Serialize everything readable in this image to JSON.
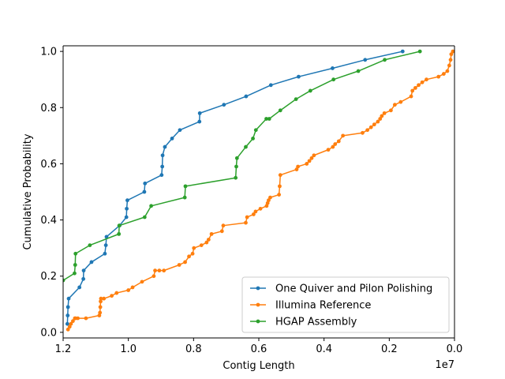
{
  "chart_data": {
    "type": "line",
    "title": "",
    "xlabel": "Contig Length",
    "ylabel": "Cumulative Probability",
    "x_offset_label": "1e7",
    "x_scale_factor": 10000000,
    "xlim": [
      12000000,
      0
    ],
    "ylim": [
      -0.02,
      1.02
    ],
    "x_inverted": true,
    "grid": false,
    "legend_position": "lower-right",
    "x_ticks": [
      {
        "value": 12000000,
        "label": "1.2"
      },
      {
        "value": 10000000,
        "label": "1.0"
      },
      {
        "value": 8000000,
        "label": "0.8"
      },
      {
        "value": 6000000,
        "label": "0.6"
      },
      {
        "value": 4000000,
        "label": "0.4"
      },
      {
        "value": 2000000,
        "label": "0.2"
      },
      {
        "value": 0,
        "label": "0.0"
      }
    ],
    "y_ticks": [
      {
        "value": 0.0,
        "label": "0.0"
      },
      {
        "value": 0.2,
        "label": "0.2"
      },
      {
        "value": 0.4,
        "label": "0.4"
      },
      {
        "value": 0.6,
        "label": "0.6"
      },
      {
        "value": 0.8,
        "label": "0.8"
      },
      {
        "value": 1.0,
        "label": "1.0"
      }
    ],
    "series": [
      {
        "name": "One Quiver and Pilon Polishing",
        "color": "#1f77b4",
        "x": [
          11870000,
          11860000,
          11850000,
          11830000,
          11500000,
          11380000,
          11370000,
          11130000,
          10720000,
          10690000,
          10670000,
          10270000,
          10060000,
          10050000,
          10030000,
          9510000,
          9490000,
          8980000,
          8960000,
          8950000,
          8880000,
          8660000,
          8420000,
          7820000,
          7810000,
          7070000,
          6390000,
          5630000,
          4780000,
          3740000,
          2740000,
          1590000
        ],
        "y": [
          0.03,
          0.06,
          0.09,
          0.12,
          0.16,
          0.19,
          0.22,
          0.25,
          0.28,
          0.31,
          0.34,
          0.38,
          0.41,
          0.44,
          0.47,
          0.5,
          0.53,
          0.56,
          0.59,
          0.63,
          0.66,
          0.69,
          0.72,
          0.75,
          0.78,
          0.81,
          0.84,
          0.88,
          0.91,
          0.94,
          0.97,
          1.0
        ]
      },
      {
        "name": "Illumina Reference",
        "color": "#ff7f0e",
        "x": [
          11850000,
          11800000,
          11760000,
          11700000,
          11640000,
          11620000,
          11550000,
          11300000,
          10890000,
          10870000,
          10860000,
          10850000,
          10840000,
          10750000,
          10510000,
          10360000,
          10000000,
          9870000,
          9580000,
          9220000,
          9180000,
          9050000,
          8910000,
          8440000,
          8260000,
          8140000,
          8030000,
          7990000,
          7760000,
          7600000,
          7540000,
          7450000,
          7130000,
          7090000,
          6400000,
          6360000,
          6160000,
          6100000,
          5950000,
          5760000,
          5730000,
          5700000,
          5650000,
          5380000,
          5360000,
          5340000,
          4840000,
          4800000,
          4530000,
          4450000,
          4380000,
          4310000,
          3870000,
          3730000,
          3660000,
          3550000,
          3420000,
          2820000,
          2670000,
          2560000,
          2460000,
          2350000,
          2280000,
          2230000,
          2150000,
          1950000,
          1830000,
          1650000,
          1330000,
          1290000,
          1200000,
          1100000,
          990000,
          860000,
          490000,
          330000,
          220000,
          160000,
          120000,
          100000,
          50000
        ],
        "y": [
          0.01,
          0.02,
          0.03,
          0.04,
          0.05,
          0.05,
          0.05,
          0.05,
          0.06,
          0.07,
          0.09,
          0.11,
          0.12,
          0.12,
          0.13,
          0.14,
          0.15,
          0.16,
          0.18,
          0.2,
          0.22,
          0.22,
          0.22,
          0.24,
          0.25,
          0.27,
          0.28,
          0.3,
          0.31,
          0.32,
          0.33,
          0.35,
          0.36,
          0.38,
          0.39,
          0.41,
          0.42,
          0.43,
          0.44,
          0.45,
          0.46,
          0.47,
          0.48,
          0.49,
          0.52,
          0.56,
          0.58,
          0.59,
          0.6,
          0.61,
          0.62,
          0.63,
          0.65,
          0.66,
          0.67,
          0.68,
          0.7,
          0.71,
          0.72,
          0.73,
          0.74,
          0.75,
          0.76,
          0.77,
          0.78,
          0.79,
          0.81,
          0.82,
          0.84,
          0.86,
          0.87,
          0.88,
          0.89,
          0.9,
          0.91,
          0.92,
          0.93,
          0.95,
          0.97,
          0.99,
          1.0
        ]
      },
      {
        "name": "HGAP Assembly",
        "color": "#2ca02c",
        "x": [
          12000000,
          11650000,
          11630000,
          11620000,
          11180000,
          10290000,
          10280000,
          9500000,
          9300000,
          8270000,
          8250000,
          6710000,
          6690000,
          6670000,
          6400000,
          6180000,
          6090000,
          5770000,
          5680000,
          5340000,
          4860000,
          4420000,
          3710000,
          2950000,
          2140000,
          1060000
        ],
        "y": [
          0.185,
          0.21,
          0.24,
          0.28,
          0.31,
          0.35,
          0.38,
          0.41,
          0.45,
          0.48,
          0.52,
          0.55,
          0.59,
          0.62,
          0.66,
          0.69,
          0.72,
          0.76,
          0.76,
          0.79,
          0.83,
          0.86,
          0.9,
          0.93,
          0.97,
          1.0
        ]
      }
    ]
  }
}
